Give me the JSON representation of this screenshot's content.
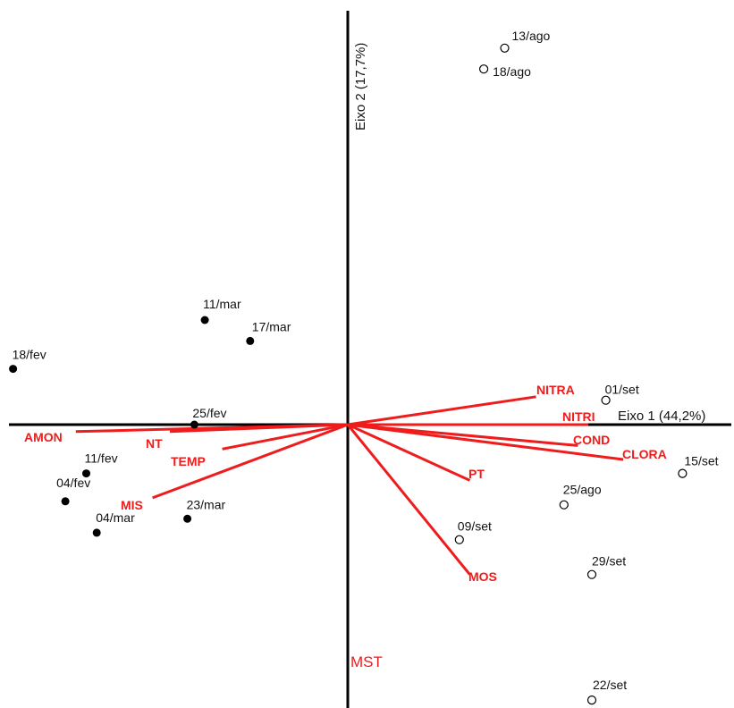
{
  "chart_data": {
    "type": "scatter",
    "title": "",
    "xlabel": "Eixo 1 (44,2%)",
    "ylabel": "Eixo 2 (17,7%)",
    "xlim": [
      -1.0,
      1.1
    ],
    "ylim": [
      -0.85,
      1.15
    ],
    "grid": false,
    "colors": {
      "axis": "#000000",
      "vector": "#ee1c1c",
      "point": "#000000"
    },
    "points": [
      {
        "label": "13/ago",
        "x": 0.45,
        "y": 1.08,
        "group": "open"
      },
      {
        "label": "18/ago",
        "x": 0.39,
        "y": 1.02,
        "group": "open"
      },
      {
        "label": "01/set",
        "x": 0.74,
        "y": 0.07,
        "group": "open"
      },
      {
        "label": "15/set",
        "x": 0.96,
        "y": -0.14,
        "group": "open"
      },
      {
        "label": "25/ago",
        "x": 0.62,
        "y": -0.23,
        "group": "open"
      },
      {
        "label": "09/set",
        "x": 0.32,
        "y": -0.33,
        "group": "open"
      },
      {
        "label": "29/set",
        "x": 0.7,
        "y": -0.43,
        "group": "open"
      },
      {
        "label": "22/set",
        "x": 0.7,
        "y": -0.79,
        "group": "open"
      },
      {
        "label": "11/mar",
        "x": -0.41,
        "y": 0.3,
        "group": "filled"
      },
      {
        "label": "17/mar",
        "x": -0.28,
        "y": 0.24,
        "group": "filled"
      },
      {
        "label": "18/fev",
        "x": -0.96,
        "y": 0.16,
        "group": "filled"
      },
      {
        "label": "25/fev",
        "x": -0.44,
        "y": 0.0,
        "group": "filled"
      },
      {
        "label": "11/fev",
        "x": -0.75,
        "y": -0.14,
        "group": "filled"
      },
      {
        "label": "04/fev",
        "x": -0.81,
        "y": -0.22,
        "group": "filled"
      },
      {
        "label": "23/mar",
        "x": -0.46,
        "y": -0.27,
        "group": "filled"
      },
      {
        "label": "04/mar",
        "x": -0.72,
        "y": -0.31,
        "group": "filled"
      }
    ],
    "vectors": [
      {
        "name": "NITRA",
        "x": 0.54,
        "y": 0.08
      },
      {
        "name": "NITRI",
        "x": 0.69,
        "y": 0.0
      },
      {
        "name": "COND",
        "x": 0.66,
        "y": -0.06
      },
      {
        "name": "CLORA",
        "x": 0.79,
        "y": -0.1
      },
      {
        "name": "PT",
        "x": 0.35,
        "y": -0.16
      },
      {
        "name": "MOS",
        "x": 0.35,
        "y": -0.43
      },
      {
        "name": "AMON",
        "x": -0.78,
        "y": -0.02
      },
      {
        "name": "NT",
        "x": -0.51,
        "y": -0.02
      },
      {
        "name": "TEMP",
        "x": -0.36,
        "y": -0.07
      },
      {
        "name": "MIS",
        "x": -0.56,
        "y": -0.21
      }
    ],
    "extra_label": "MST"
  }
}
